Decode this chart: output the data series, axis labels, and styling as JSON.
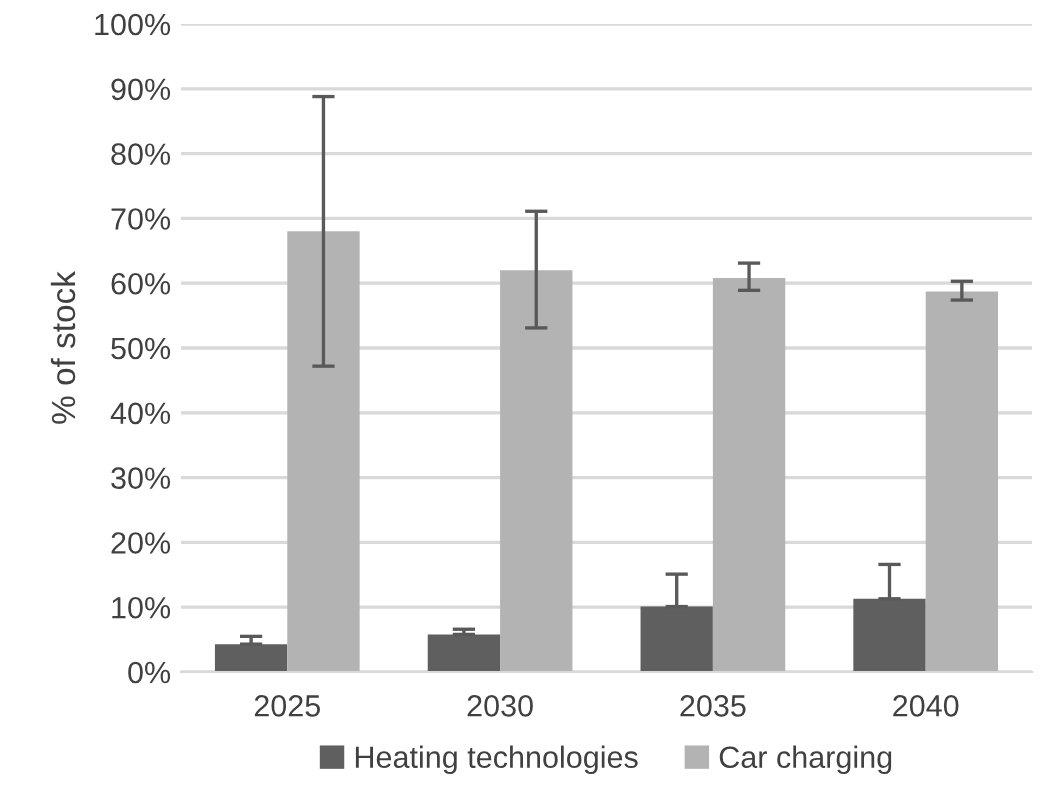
{
  "chart_data": {
    "type": "bar",
    "ylabel": "% of stock",
    "categories": [
      "2025",
      "2030",
      "2035",
      "2040"
    ],
    "series": [
      {
        "name": "Heating technologies",
        "color": "#5f5f5f",
        "values": [
          4.3,
          5.8,
          10.1,
          11.3
        ],
        "errors": [
          [
            4.3,
            5.5
          ],
          [
            5.8,
            6.6
          ],
          [
            10.1,
            15.1
          ],
          [
            11.3,
            16.6
          ]
        ]
      },
      {
        "name": "Car charging",
        "color": "#b3b3b3",
        "values": [
          68,
          62,
          60.8,
          58.7
        ],
        "errors": [
          [
            47.2,
            88.8
          ],
          [
            53.1,
            71.1
          ],
          [
            58.9,
            63.1
          ],
          [
            57.4,
            60.3
          ]
        ]
      }
    ],
    "ylim": [
      0,
      100
    ],
    "yticks": [
      {
        "value": 0,
        "label": "0%"
      },
      {
        "value": 10,
        "label": "10%"
      },
      {
        "value": 20,
        "label": "20%"
      },
      {
        "value": 30,
        "label": "30%"
      },
      {
        "value": 40,
        "label": "40%"
      },
      {
        "value": 50,
        "label": "50%"
      },
      {
        "value": 60,
        "label": "60%"
      },
      {
        "value": 70,
        "label": "70%"
      },
      {
        "value": 80,
        "label": "80%"
      },
      {
        "value": 90,
        "label": "90%"
      },
      {
        "value": 100,
        "label": "100%"
      }
    ],
    "grid": "y",
    "legend": "bottom"
  }
}
